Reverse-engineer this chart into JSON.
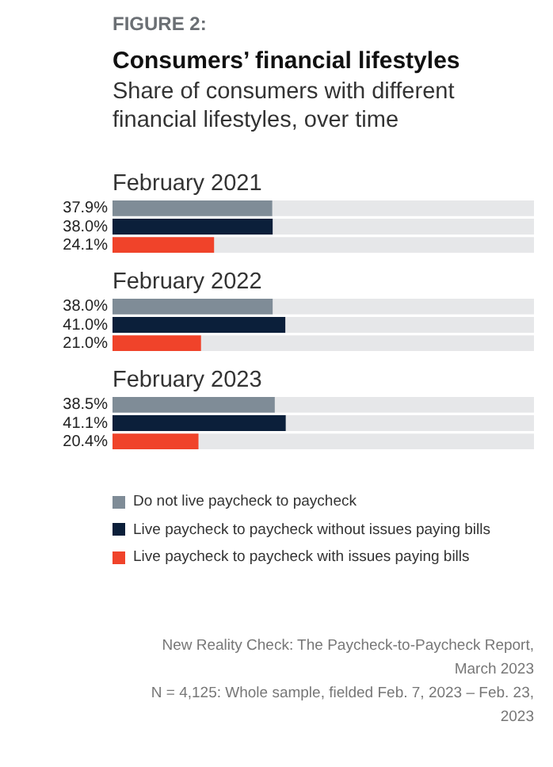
{
  "chart_data": {
    "type": "bar",
    "orientation": "horizontal",
    "title": "Consumers’ financial lifestyles",
    "subtitle": "Share of consumers with different financial lifestyles, over time",
    "categories": [
      "February 2021",
      "February 2022",
      "February 2023"
    ],
    "series": [
      {
        "name": "Do not live paycheck to paycheck",
        "color": "#7f8c97",
        "values": [
          37.9,
          38.0,
          38.5
        ],
        "value_labels": [
          "37.9%",
          "38.0%",
          "38.5%"
        ]
      },
      {
        "name": "Live paycheck to paycheck without issues paying bills",
        "color": "#0b1f3a",
        "values": [
          38.0,
          41.0,
          41.1
        ],
        "value_labels": [
          "38.0%",
          "41.0%",
          "41.1%"
        ]
      },
      {
        "name": "Live paycheck to paycheck with issues paying bills",
        "color": "#f0432a",
        "values": [
          24.1,
          21.0,
          20.4
        ],
        "value_labels": [
          "24.1%",
          "21.0%",
          "20.4%"
        ]
      }
    ],
    "xlim": [
      0,
      100
    ],
    "tick_labels": false,
    "grid": false,
    "legend": "bottom",
    "annotations": [
      "FIGURE 2:",
      "New Reality Check: The Paycheck-to-Paycheck Report, March 2023",
      "N = 4,125: Whole sample, fielded Feb. 7, 2023 – Feb. 23, 2023"
    ]
  }
}
